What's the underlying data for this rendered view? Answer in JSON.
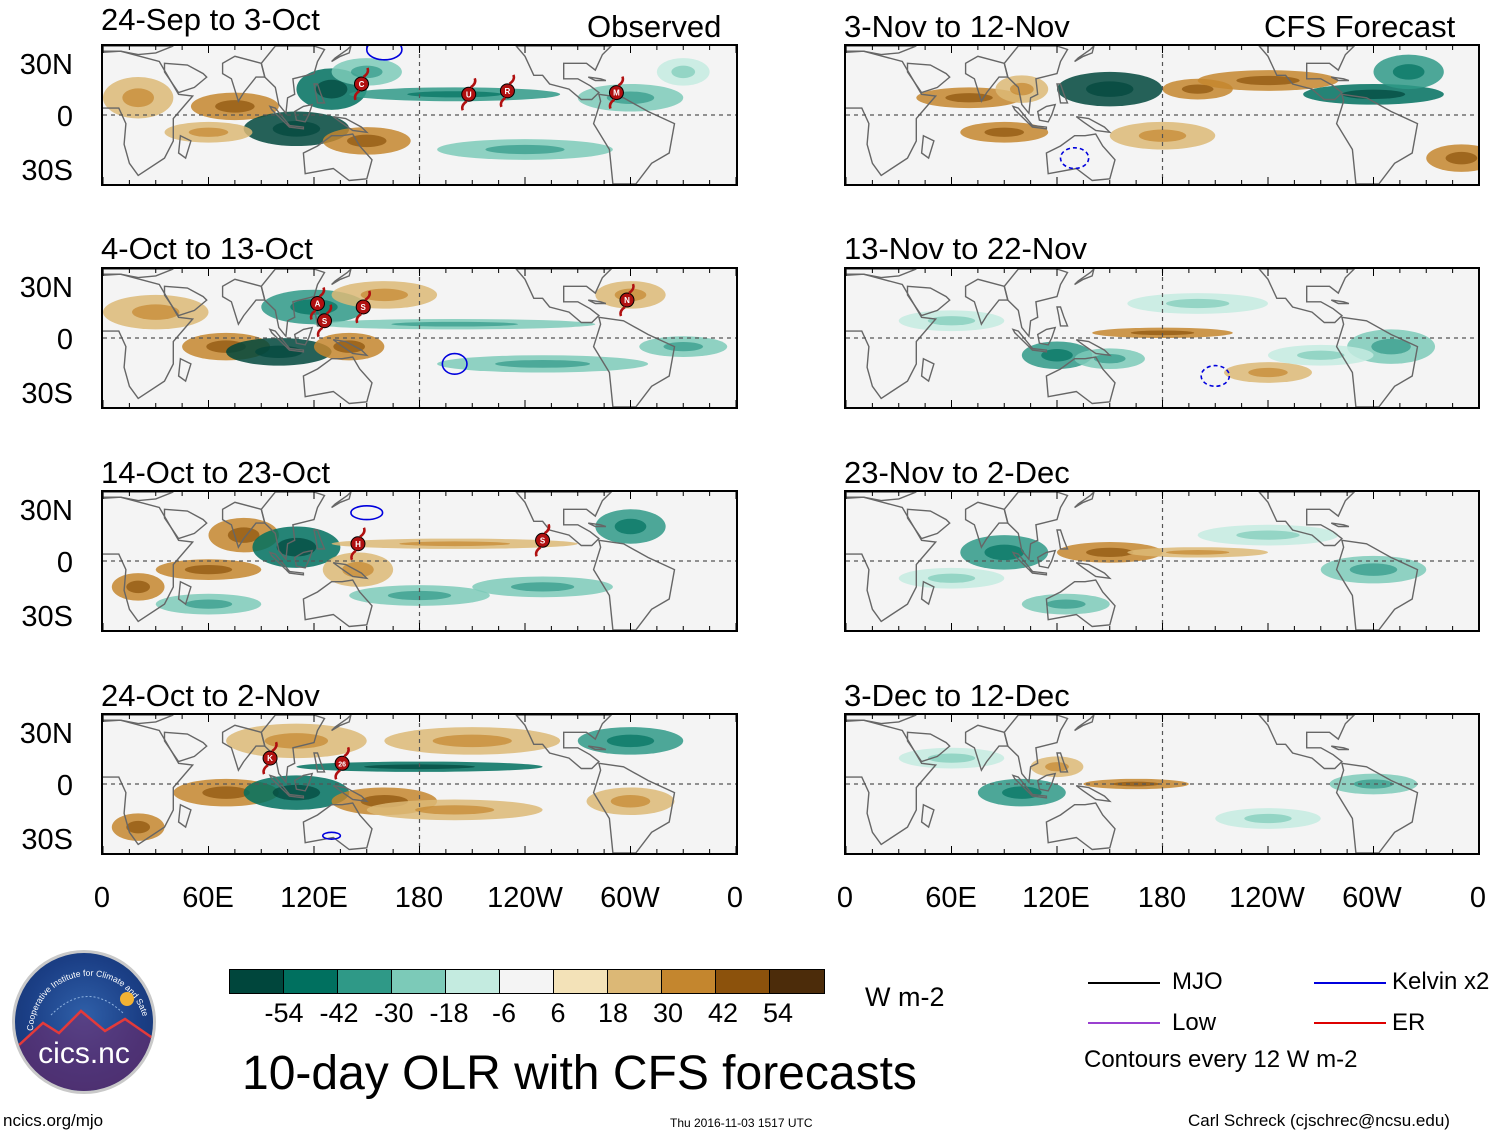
{
  "headers": {
    "left": "Observed",
    "right": "CFS Forecast"
  },
  "panels": [
    {
      "title": "24-Sep to 3-Oct",
      "column": "observed"
    },
    {
      "title": "4-Oct to 13-Oct",
      "column": "observed"
    },
    {
      "title": "14-Oct to 23-Oct",
      "column": "observed"
    },
    {
      "title": "24-Oct to 2-Nov",
      "column": "observed"
    },
    {
      "title": "3-Nov to 12-Nov",
      "column": "forecast"
    },
    {
      "title": "13-Nov to 22-Nov",
      "column": "forecast"
    },
    {
      "title": "23-Nov to 2-Dec",
      "column": "forecast"
    },
    {
      "title": "3-Dec to 12-Dec",
      "column": "forecast"
    }
  ],
  "lat_labels": [
    "30N",
    "0",
    "30S"
  ],
  "lon_labels": [
    "0",
    "60E",
    "120E",
    "180",
    "120W",
    "60W",
    "0"
  ],
  "storm_labels": [
    [
      "C",
      "U",
      "R",
      "M"
    ],
    [
      "A",
      "S",
      "S",
      "N"
    ],
    [
      "H",
      "S"
    ],
    [
      "K",
      "26"
    ]
  ],
  "colorbar": {
    "colors": [
      "#00463c",
      "#00705f",
      "#2f9987",
      "#7ccab8",
      "#c4ebe0",
      "#f4f4f4",
      "#f3e2b8",
      "#dcb876",
      "#c4862e",
      "#8c520c",
      "#4c2c0a"
    ],
    "ticks": [
      "-54",
      "-42",
      "-30",
      "-18",
      "-6",
      "6",
      "18",
      "30",
      "42",
      "54"
    ],
    "units": "W m-2"
  },
  "title": "10-day OLR with CFS forecasts",
  "legend": {
    "items": [
      {
        "label": "MJO",
        "color": "#000000"
      },
      {
        "label": "Low",
        "color": "#9a40d0"
      },
      {
        "label": "Kelvin x2",
        "color": "#0000dd"
      },
      {
        "label": "ER",
        "color": "#dd0000"
      }
    ],
    "note": "Contours every 12 W m-2"
  },
  "logo": {
    "text": "cics.nc",
    "arc_text": "Cooperative Institute for Climate and Satellites"
  },
  "footer": {
    "left": "ncics.org/mjo",
    "center": "Thu 2016-11-03 1517 UTC",
    "right": "Carl Schreck (cjschrec@ncsu.edu)"
  }
}
